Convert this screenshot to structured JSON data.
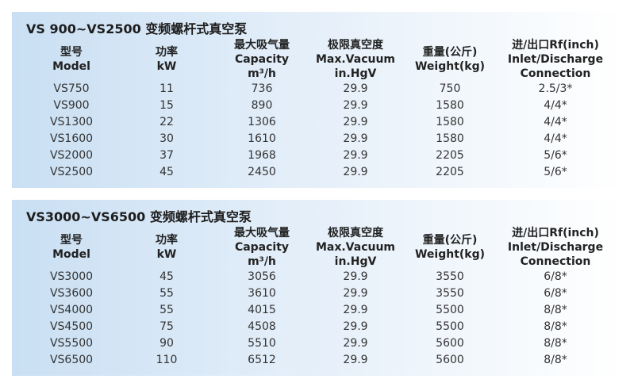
{
  "tables": [
    {
      "title": "VS 900~VS2500 变频螺杆式真空泵",
      "headers": [
        [
          "型号",
          "Model"
        ],
        [
          "功率",
          "kW"
        ],
        [
          "最大吸气量",
          "Capacity",
          "m³/h"
        ],
        [
          "极限真空度",
          "Max.Vacuum",
          "in.HgV"
        ],
        [
          "重量(公斤)",
          "Weight(kg)"
        ],
        [
          "进/出口Rf(inch)",
          "Inlet/Discharge",
          "Connection"
        ]
      ],
      "rows": [
        [
          "VS750",
          "11",
          "736",
          "29.9",
          "750",
          "2.5/3*"
        ],
        [
          "VS900",
          "15",
          "890",
          "29.9",
          "1580",
          "4/4*"
        ],
        [
          "VS1300",
          "22",
          "1306",
          "29.9",
          "1580",
          "4/4*"
        ],
        [
          "VS1600",
          "30",
          "1610",
          "29.9",
          "1580",
          "4/4*"
        ],
        [
          "VS2000",
          "37",
          "1968",
          "29.9",
          "2205",
          "5/6*"
        ],
        [
          "VS2500",
          "45",
          "2450",
          "29.9",
          "2205",
          "5/6*"
        ]
      ]
    },
    {
      "title": "VS3000~VS6500 变频螺杆式真空泵",
      "headers": [
        [
          "型号",
          "Model"
        ],
        [
          "功率",
          "kW"
        ],
        [
          "最大吸气量",
          "Capacity",
          "m³/h"
        ],
        [
          "极限真空度",
          "Max.Vacuum",
          "in.HgV"
        ],
        [
          "重量(公斤)",
          "Weight(kg)"
        ],
        [
          "进/出口Rf(inch)",
          "Inlet/Discharge",
          "Connection"
        ]
      ],
      "rows": [
        [
          "VS3000",
          "45",
          "3056",
          "29.9",
          "3550",
          "6/8*"
        ],
        [
          "VS3600",
          "55",
          "3610",
          "29.9",
          "3550",
          "6/8*"
        ],
        [
          "VS4000",
          "55",
          "4015",
          "29.9",
          "5500",
          "8/8*"
        ],
        [
          "VS4500",
          "75",
          "4508",
          "29.9",
          "5500",
          "8/8*"
        ],
        [
          "VS5500",
          "90",
          "5510",
          "29.9",
          "5600",
          "8/8*"
        ],
        [
          "VS6500",
          "110",
          "6512",
          "29.9",
          "5600",
          "8/8*"
        ]
      ]
    }
  ]
}
